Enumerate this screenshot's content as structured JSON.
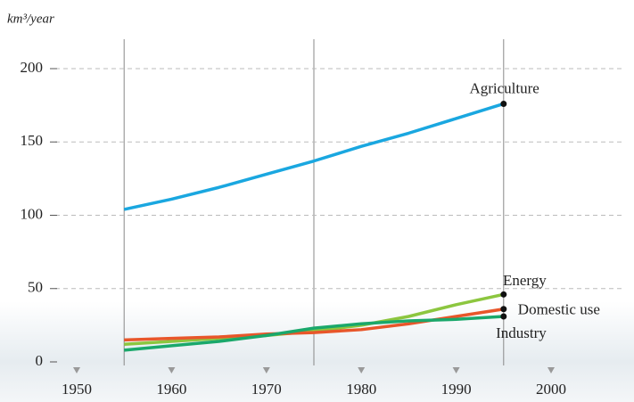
{
  "chart_data": {
    "type": "line",
    "y_label": "km³/year",
    "x": [
      1955,
      1960,
      1965,
      1970,
      1975,
      1980,
      1985,
      1990,
      1995
    ],
    "series": [
      {
        "name": "Agriculture",
        "color": "#1aa7e0",
        "values": [
          104,
          111,
          119,
          128,
          137,
          147,
          156,
          166,
          176
        ]
      },
      {
        "name": "Energy",
        "color": "#8cc63f",
        "values": [
          12,
          14,
          16,
          18,
          21,
          25,
          31,
          39,
          46
        ]
      },
      {
        "name": "Domestic use",
        "color": "#e8562a",
        "values": [
          15,
          16,
          17,
          19,
          20,
          22,
          26,
          31,
          36
        ]
      },
      {
        "name": "Industry",
        "color": "#1aa86b",
        "values": [
          8,
          11,
          14,
          18,
          23,
          26,
          28,
          29,
          31
        ]
      }
    ],
    "xlim": [
      1950,
      2000
    ],
    "xticks": [
      1950,
      1960,
      1970,
      1980,
      1990,
      2000
    ],
    "ylim": [
      0,
      200
    ],
    "yticks": [
      0,
      50,
      100,
      150,
      200
    ],
    "grid": true
  }
}
